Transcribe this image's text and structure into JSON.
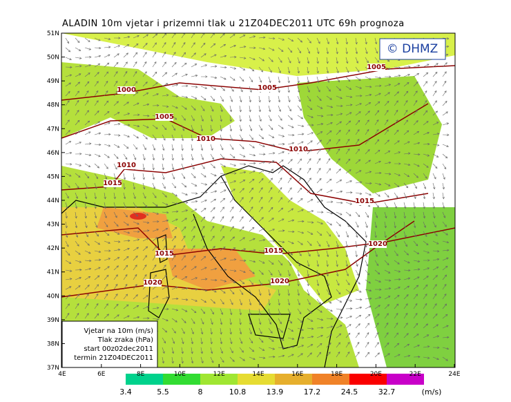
{
  "title": "ALADIN 10m vjetar i prizemni tlak u 21Z04DEC2011 UTC 69h prognoza",
  "logo": "© DHMZ",
  "lat_labels": [
    "51N",
    "50N",
    "49N",
    "48N",
    "47N",
    "46N",
    "45N",
    "44N",
    "43N",
    "42N",
    "41N",
    "40N",
    "39N",
    "38N",
    "37N"
  ],
  "lon_labels": [
    "4E",
    "6E",
    "8E",
    "10E",
    "12E",
    "14E",
    "16E",
    "18E",
    "20E",
    "22E",
    "24E"
  ],
  "isobar_labels": [
    "1000",
    "1005",
    "1005",
    "1005",
    "1010",
    "1010",
    "1010",
    "1015",
    "1015",
    "1015",
    "1015",
    "1020",
    "1020",
    "1020"
  ],
  "info_box": [
    "Vjetar na 10m (m/s)",
    "Tlak zraka (hPa)",
    "start 00z02dec2011",
    "termin 21Z04DEC2011"
  ],
  "colorbar": {
    "labels": [
      "3.4",
      "5.5",
      "8",
      "10.8",
      "13.9",
      "17.2",
      "24.5",
      "32.7"
    ],
    "unit": "(m/s)"
  }
}
